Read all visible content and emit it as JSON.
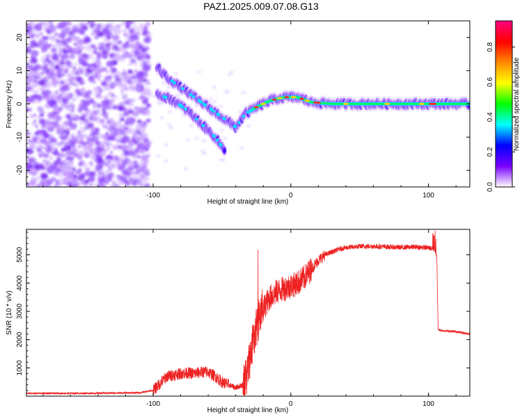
{
  "title": "PAZ1.2025.009.07.08.G13",
  "chart_data": [
    {
      "type": "heatmap",
      "xlabel": "Height of straight line (km)",
      "ylabel": "Frequency (Hz)",
      "xlim": [
        -192,
        130
      ],
      "ylim": [
        -25,
        25
      ],
      "xticks": [
        -100,
        0,
        100
      ],
      "yticks": [
        -20,
        -10,
        0,
        10,
        20
      ],
      "colorbar": {
        "label": "Normalized spectral amplitude",
        "range": [
          0,
          0.95
        ],
        "ticks": [
          "0.0",
          "0.2",
          "0.4",
          "0.6",
          "0.8"
        ],
        "colors": [
          "#ffffff",
          "#7a00ff",
          "#0000ff",
          "#00ffff",
          "#00ff00",
          "#ffff00",
          "#ff8800",
          "#ff0000",
          "#ff0080"
        ]
      },
      "ridge": [
        {
          "x": -97,
          "y": 11
        },
        {
          "x": -90,
          "y": 8
        },
        {
          "x": -80,
          "y": 5
        },
        {
          "x": -70,
          "y": 2
        },
        {
          "x": -60,
          "y": -1
        },
        {
          "x": -50,
          "y": -4
        },
        {
          "x": -40,
          "y": -7
        },
        {
          "x": -33,
          "y": -3
        },
        {
          "x": -25,
          "y": -1
        },
        {
          "x": -15,
          "y": 1
        },
        {
          "x": -5,
          "y": 2
        },
        {
          "x": 5,
          "y": 2
        },
        {
          "x": 15,
          "y": 0.5
        },
        {
          "x": 30,
          "y": 0
        },
        {
          "x": 60,
          "y": 0
        },
        {
          "x": 90,
          "y": 0
        },
        {
          "x": 130,
          "y": 0
        }
      ],
      "branch": [
        {
          "x": -97,
          "y": 3
        },
        {
          "x": -85,
          "y": 1
        },
        {
          "x": -75,
          "y": -2
        },
        {
          "x": -65,
          "y": -6
        },
        {
          "x": -55,
          "y": -10
        },
        {
          "x": -48,
          "y": -14
        }
      ]
    },
    {
      "type": "line",
      "xlabel": "Height of straight line (km)",
      "ylabel": "SNR (10 * v/v)",
      "xlim": [
        -192,
        130
      ],
      "ylim": [
        0,
        5900
      ],
      "xticks": [
        -100,
        0,
        100
      ],
      "yticks": [
        1000,
        2000,
        3000,
        4000,
        5000
      ],
      "color": "#ee2222",
      "x": [
        -192,
        -170,
        -150,
        -130,
        -110,
        -100,
        -95,
        -90,
        -85,
        -80,
        -75,
        -70,
        -65,
        -60,
        -55,
        -50,
        -45,
        -40,
        -35,
        -32,
        -30,
        -28,
        -26,
        -24,
        -22,
        -20,
        -15,
        -10,
        -5,
        0,
        5,
        10,
        15,
        20,
        25,
        30,
        35,
        40,
        50,
        60,
        70,
        80,
        90,
        100,
        104,
        106,
        107,
        110,
        120,
        130
      ],
      "y": [
        100,
        100,
        100,
        110,
        120,
        200,
        450,
        700,
        750,
        800,
        820,
        800,
        850,
        850,
        700,
        500,
        400,
        300,
        400,
        700,
        1300,
        1800,
        2200,
        2600,
        2900,
        3100,
        3500,
        3700,
        3800,
        3900,
        4000,
        4200,
        4500,
        4800,
        5000,
        5100,
        5200,
        5250,
        5300,
        5300,
        5280,
        5260,
        5280,
        5250,
        5200,
        5000,
        2350,
        2320,
        2280,
        2200
      ]
    }
  ]
}
